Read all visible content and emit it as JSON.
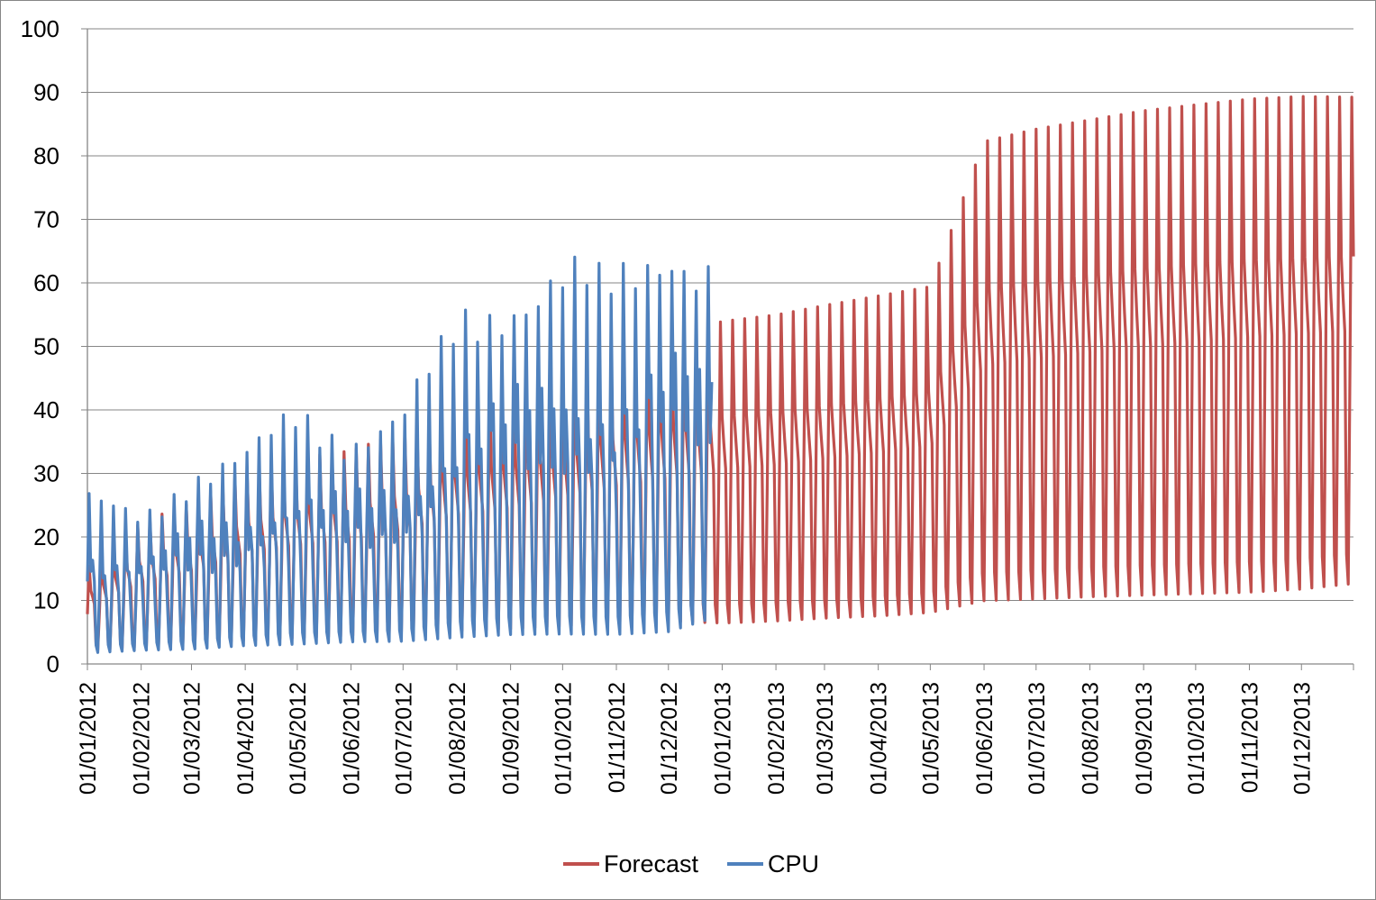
{
  "chart_data": {
    "type": "line",
    "title": "",
    "xlabel": "",
    "ylabel": "",
    "x_range": [
      "01/01/2012",
      "31/12/2013"
    ],
    "ylim": [
      0,
      100
    ],
    "yticks": [
      0,
      10,
      20,
      30,
      40,
      50,
      60,
      70,
      80,
      90,
      100
    ],
    "xtick_labels": [
      "01/01/2012",
      "01/02/2012",
      "01/03/2012",
      "01/04/2012",
      "01/05/2012",
      "01/06/2012",
      "01/07/2012",
      "01/08/2012",
      "01/09/2012",
      "01/10/2012",
      "01/11/2012",
      "01/12/2012",
      "01/01/2013",
      "01/02/2013",
      "01/03/2013",
      "01/04/2013",
      "01/05/2013",
      "01/06/2013",
      "01/07/2013",
      "01/08/2013",
      "01/09/2013",
      "01/10/2013",
      "01/11/2013",
      "01/12/2013"
    ],
    "grid": "horizontal",
    "legend": "bottom",
    "series": [
      {
        "name": "Forecast",
        "color": "#c0504d",
        "period_days": 7,
        "start": "01/01/2012",
        "end": "31/12/2013",
        "weekly_shape": [
          0.47,
          1.0,
          0.7,
          0.63,
          0.56,
          0.1,
          0.04
        ],
        "level": [
          {
            "date": "01/01/2012",
            "peak": 15,
            "trough": 1.5
          },
          {
            "date": "01/02/2012",
            "peak": 22,
            "trough": 1.8
          },
          {
            "date": "01/03/2012",
            "peak": 25,
            "trough": 2.2
          },
          {
            "date": "01/04/2012",
            "peak": 30,
            "trough": 2.6
          },
          {
            "date": "01/05/2012",
            "peak": 32,
            "trough": 2.9
          },
          {
            "date": "01/06/2012",
            "peak": 33,
            "trough": 3.2
          },
          {
            "date": "01/07/2012",
            "peak": 36,
            "trough": 3.5
          },
          {
            "date": "01/08/2012",
            "peak": 40,
            "trough": 3.8
          },
          {
            "date": "01/09/2012",
            "peak": 42,
            "trough": 4.0
          },
          {
            "date": "01/10/2012",
            "peak": 45,
            "trough": 4.3
          },
          {
            "date": "01/11/2012",
            "peak": 48,
            "trough": 4.6
          },
          {
            "date": "01/12/2012",
            "peak": 50,
            "trough": 4.9
          },
          {
            "date": "01/01/2013",
            "peak": 53,
            "trough": 4.5
          },
          {
            "date": "01/02/2013",
            "peak": 54,
            "trough": 4.8
          },
          {
            "date": "01/03/2013",
            "peak": 55.5,
            "trough": 5.2
          },
          {
            "date": "01/04/2013",
            "peak": 57,
            "trough": 5.5
          },
          {
            "date": "01/05/2013",
            "peak": 58.5,
            "trough": 6.0
          },
          {
            "date": "01/06/2013",
            "peak": 81,
            "trough": 7.0
          },
          {
            "date": "01/07/2013",
            "peak": 83,
            "trough": 7.2
          },
          {
            "date": "01/08/2013",
            "peak": 84.5,
            "trough": 7.5
          },
          {
            "date": "01/09/2013",
            "peak": 86,
            "trough": 7.7
          },
          {
            "date": "01/10/2013",
            "peak": 87,
            "trough": 7.9
          },
          {
            "date": "01/11/2013",
            "peak": 88,
            "trough": 8.1
          },
          {
            "date": "01/12/2013",
            "peak": 88.5,
            "trough": 8.6
          },
          {
            "date": "31/12/2013",
            "peak": 88.5,
            "trough": 9.5
          }
        ]
      },
      {
        "name": "CPU",
        "color": "#4f81bd",
        "period_days": 7,
        "start": "01/01/2012",
        "end": "26/12/2012",
        "weekly_shape": [
          0.5,
          1.0,
          0.55,
          0.65,
          0.42,
          0.08,
          0.03
        ],
        "level": [
          {
            "date": "01/01/2012",
            "peak": 25,
            "trough": 1
          },
          {
            "date": "01/02/2012",
            "peak": 23,
            "trough": 1.5
          },
          {
            "date": "01/03/2012",
            "peak": 29,
            "trough": 1.5
          },
          {
            "date": "01/04/2012",
            "peak": 31.5,
            "trough": 2
          },
          {
            "date": "01/05/2012",
            "peak": 38.5,
            "trough": 2
          },
          {
            "date": "01/06/2012",
            "peak": 35,
            "trough": 2.5
          },
          {
            "date": "01/07/2012",
            "peak": 38,
            "trough": 2.5
          },
          {
            "date": "01/08/2012",
            "peak": 52,
            "trough": 2.7
          },
          {
            "date": "01/09/2012",
            "peak": 57,
            "trough": 3
          },
          {
            "date": "01/10/2012",
            "peak": 60,
            "trough": 3
          },
          {
            "date": "01/11/2012",
            "peak": 58,
            "trough": 3
          },
          {
            "date": "01/12/2012",
            "peak": 66,
            "trough": 3.2
          },
          {
            "date": "26/12/2012",
            "peak": 61.5,
            "trough": 5.5
          }
        ]
      }
    ]
  }
}
